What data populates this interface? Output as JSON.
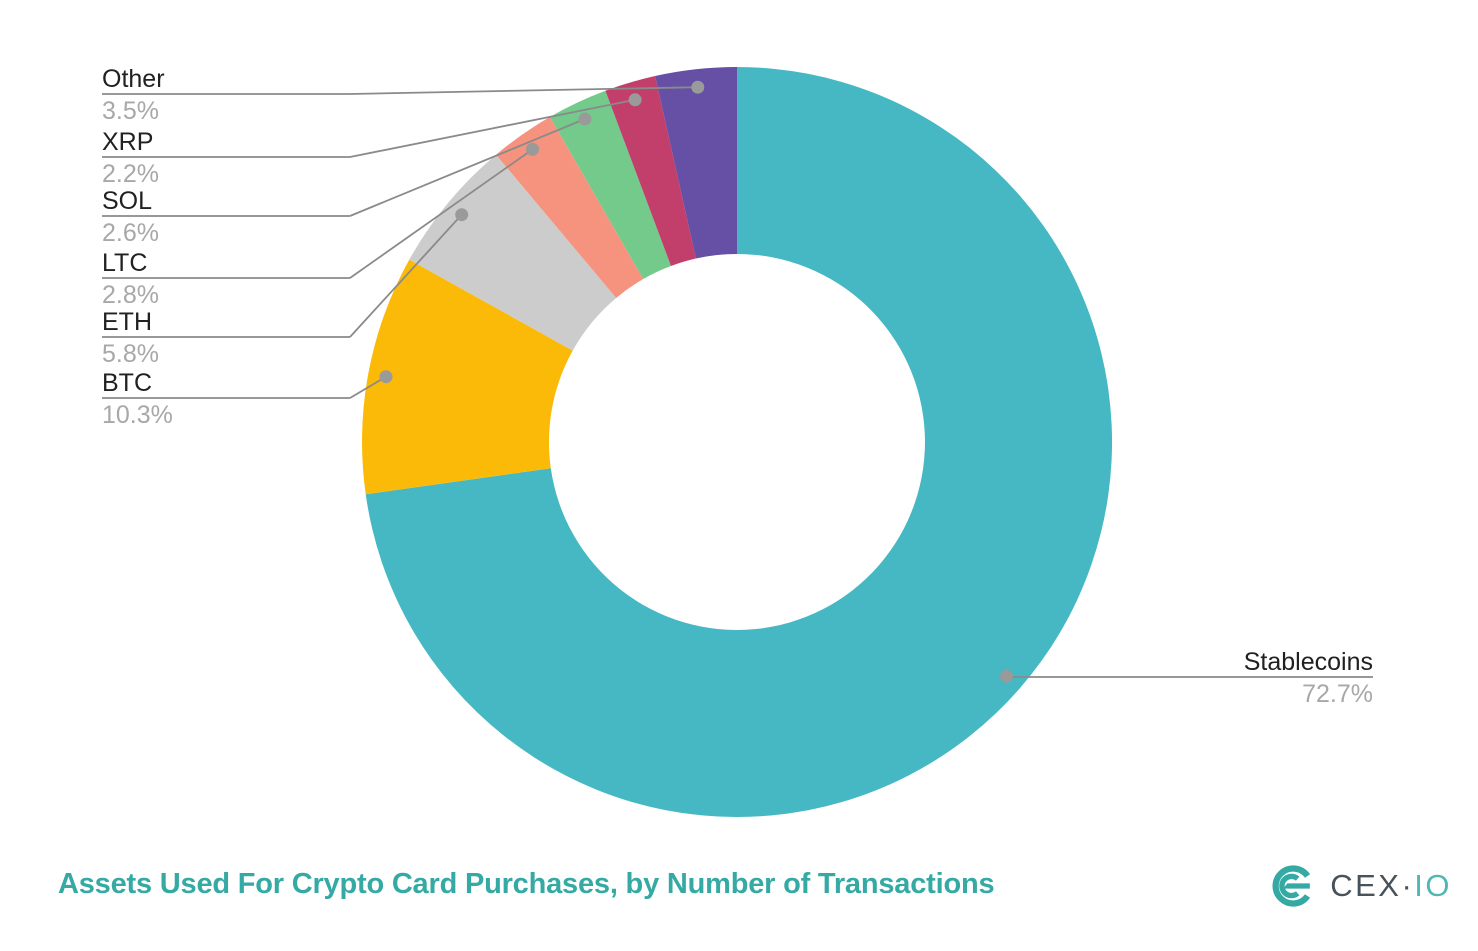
{
  "title": {
    "text": "Assets Used For Crypto Card Purchases, by Number of Transactions",
    "color": "#35A9A3"
  },
  "logo": {
    "brand_primary": "CEX",
    "brand_separator": "·",
    "brand_secondary": "IO",
    "mark_color": "#35A9A3",
    "text_primary_color": "#47525A",
    "text_secondary_color": "#4FB8B4"
  },
  "chart_data": {
    "type": "pie",
    "subtype": "donut",
    "title": "Assets Used For Crypto Card Purchases, by Number of Transactions",
    "unit": "%",
    "start_angle_deg": 0,
    "direction": "clockwise",
    "donut_hole_ratio": 0.5,
    "series": [
      {
        "name": "Stablecoins",
        "value": 72.7,
        "pct_label": "72.7%",
        "color": "#45B8C4",
        "label_side": "right"
      },
      {
        "name": "BTC",
        "value": 10.3,
        "pct_label": "10.3%",
        "color": "#FBBA07",
        "label_side": "left"
      },
      {
        "name": "ETH",
        "value": 5.8,
        "pct_label": "5.8%",
        "color": "#CCCCCC",
        "label_side": "left"
      },
      {
        "name": "LTC",
        "value": 2.8,
        "pct_label": "2.8%",
        "color": "#F5937E",
        "label_side": "left"
      },
      {
        "name": "SOL",
        "value": 2.6,
        "pct_label": "2.6%",
        "color": "#73CA8B",
        "label_side": "left"
      },
      {
        "name": "XRP",
        "value": 2.2,
        "pct_label": "2.2%",
        "color": "#C23F6B",
        "label_side": "left"
      },
      {
        "name": "Other",
        "value": 3.5,
        "pct_label": "3.5%",
        "color": "#6550A6",
        "label_side": "left"
      }
    ],
    "label_text_color": "#212121",
    "pct_text_color": "#A8A8A8",
    "leader_line_color": "#8A8A8A",
    "dot_color": "#9A9A9A",
    "legend": "none",
    "grid": false
  }
}
